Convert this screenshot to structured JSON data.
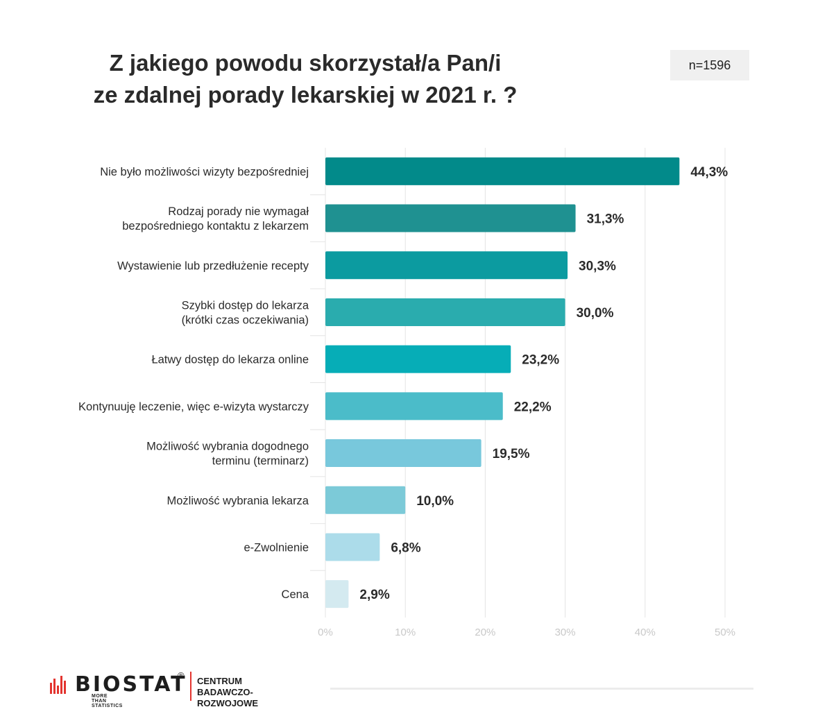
{
  "header": {
    "title_line1": "Z jakiego powodu skorzystał/a Pan/i",
    "title_line2": "ze zdalnej porady lekarskiej w 2021 r. ?",
    "sample_size": "n=1596"
  },
  "chart_data": {
    "type": "bar",
    "orientation": "horizontal",
    "categories": [
      [
        "Nie było możliwości wizyty bezpośredniej"
      ],
      [
        "Rodzaj porady nie wymagał",
        "bezpośredniego kontaktu z lekarzem"
      ],
      [
        "Wystawienie lub przedłużenie recepty"
      ],
      [
        "Szybki dostęp do lekarza",
        "(krótki czas oczekiwania)"
      ],
      [
        "Łatwy dostęp do lekarza online"
      ],
      [
        "Kontynuuję leczenie, więc e-wizyta wystarczy"
      ],
      [
        "Możliwość wybrania dogodnego",
        "terminu (terminarz)"
      ],
      [
        "Możliwość wybrania lekarza"
      ],
      [
        "e-Zwolnienie"
      ],
      [
        "Cena"
      ]
    ],
    "values": [
      44.3,
      31.3,
      30.3,
      30.0,
      23.2,
      22.2,
      19.5,
      10.0,
      6.8,
      2.9
    ],
    "value_labels": [
      "44,3%",
      "31,3%",
      "30,3%",
      "30,0%",
      "23,2%",
      "22,2%",
      "19,5%",
      "10,0%",
      "6,8%",
      "2,9%"
    ],
    "colors": [
      "#028a8a",
      "#1f9191",
      "#0c9ba0",
      "#2aacae",
      "#06adb7",
      "#4bbcc9",
      "#78c8dc",
      "#7ccad8",
      "#acdcea",
      "#d4eaf0"
    ],
    "xlim": [
      0,
      50
    ],
    "xticks": [
      "0%",
      "10%",
      "20%",
      "30%",
      "40%",
      "50%"
    ],
    "grid": true,
    "legend": "none"
  },
  "footer": {
    "logo_text": "BIOSTAT",
    "logo_reg": "®",
    "logo_tagline": "MORE THAN STATISTICS",
    "dept_line1": "CENTRUM",
    "dept_line2": "BADAWCZO-ROZWOJOWE",
    "brand_color": "#e3342f"
  }
}
